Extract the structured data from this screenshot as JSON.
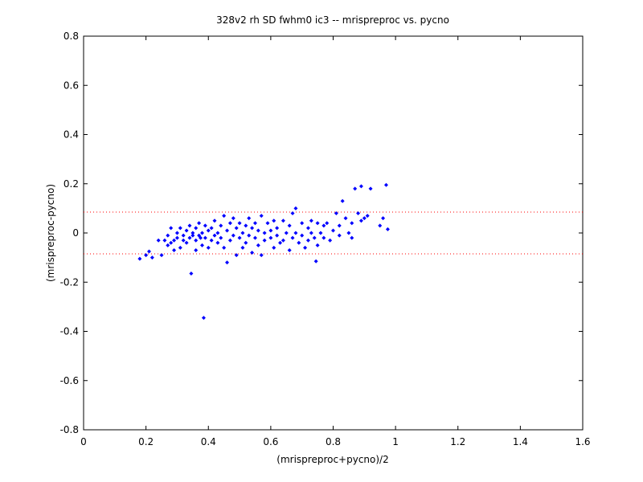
{
  "chart_data": {
    "type": "scatter",
    "title": "328v2 rh SD fwhm0 ic3 -- mrispreproc vs. pycno",
    "xlabel": "(mrispreproc+pycno)/2",
    "ylabel": "(mrispreproc-pycno)",
    "xlim": [
      0,
      1.6
    ],
    "ylim": [
      -0.8,
      0.8
    ],
    "xticks": [
      "0",
      "0.2",
      "0.4",
      "0.6",
      "0.8",
      "1",
      "1.2",
      "1.4",
      "1.6"
    ],
    "yticks": [
      "0.8",
      "0.6",
      "0.4",
      "0.2",
      "0",
      "-0.2",
      "-0.4",
      "-0.6",
      "-0.8"
    ],
    "grid": false,
    "reference_lines": [
      {
        "y": 0.085,
        "style": "dotted",
        "color": "#ff0000"
      },
      {
        "y": -0.085,
        "style": "dotted",
        "color": "#ff0000"
      }
    ],
    "series_color": "#0000ff",
    "points": [
      [
        0.18,
        -0.105
      ],
      [
        0.2,
        -0.09
      ],
      [
        0.21,
        -0.075
      ],
      [
        0.22,
        -0.1
      ],
      [
        0.24,
        -0.03
      ],
      [
        0.25,
        -0.09
      ],
      [
        0.26,
        -0.03
      ],
      [
        0.27,
        -0.01
      ],
      [
        0.27,
        -0.05
      ],
      [
        0.28,
        0.02
      ],
      [
        0.28,
        -0.04
      ],
      [
        0.29,
        -0.03
      ],
      [
        0.29,
        -0.07
      ],
      [
        0.3,
        0.0
      ],
      [
        0.3,
        -0.02
      ],
      [
        0.31,
        -0.06
      ],
      [
        0.31,
        0.02
      ],
      [
        0.32,
        -0.01
      ],
      [
        0.32,
        -0.03
      ],
      [
        0.33,
        0.01
      ],
      [
        0.33,
        -0.04
      ],
      [
        0.34,
        -0.02
      ],
      [
        0.34,
        0.03
      ],
      [
        0.345,
        -0.165
      ],
      [
        0.35,
        -0.01
      ],
      [
        0.35,
        0.0
      ],
      [
        0.36,
        -0.03
      ],
      [
        0.36,
        0.02
      ],
      [
        0.36,
        -0.07
      ],
      [
        0.37,
        -0.01
      ],
      [
        0.37,
        0.04
      ],
      [
        0.375,
        -0.02
      ],
      [
        0.38,
        0.0
      ],
      [
        0.38,
        -0.05
      ],
      [
        0.385,
        -0.345
      ],
      [
        0.39,
        0.03
      ],
      [
        0.39,
        -0.02
      ],
      [
        0.4,
        0.01
      ],
      [
        0.4,
        -0.06
      ],
      [
        0.41,
        0.02
      ],
      [
        0.41,
        -0.03
      ],
      [
        0.42,
        0.05
      ],
      [
        0.42,
        -0.01
      ],
      [
        0.43,
        0.0
      ],
      [
        0.43,
        -0.04
      ],
      [
        0.44,
        0.03
      ],
      [
        0.44,
        -0.02
      ],
      [
        0.45,
        0.07
      ],
      [
        0.45,
        -0.06
      ],
      [
        0.46,
        0.01
      ],
      [
        0.46,
        -0.12
      ],
      [
        0.47,
        0.04
      ],
      [
        0.47,
        -0.03
      ],
      [
        0.48,
        -0.01
      ],
      [
        0.48,
        0.06
      ],
      [
        0.49,
        -0.09
      ],
      [
        0.49,
        0.02
      ],
      [
        0.5,
        -0.02
      ],
      [
        0.5,
        0.04
      ],
      [
        0.51,
        0.0
      ],
      [
        0.51,
        -0.06
      ],
      [
        0.52,
        0.03
      ],
      [
        0.52,
        -0.04
      ],
      [
        0.53,
        0.06
      ],
      [
        0.53,
        -0.01
      ],
      [
        0.54,
        0.02
      ],
      [
        0.54,
        -0.08
      ],
      [
        0.55,
        -0.02
      ],
      [
        0.55,
        0.04
      ],
      [
        0.56,
        0.01
      ],
      [
        0.56,
        -0.05
      ],
      [
        0.57,
        -0.09
      ],
      [
        0.57,
        0.07
      ],
      [
        0.58,
        0.0
      ],
      [
        0.58,
        -0.03
      ],
      [
        0.59,
        0.04
      ],
      [
        0.6,
        -0.02
      ],
      [
        0.6,
        0.01
      ],
      [
        0.61,
        0.05
      ],
      [
        0.61,
        -0.06
      ],
      [
        0.62,
        0.02
      ],
      [
        0.62,
        -0.01
      ],
      [
        0.63,
        -0.04
      ],
      [
        0.64,
        0.05
      ],
      [
        0.64,
        -0.03
      ],
      [
        0.65,
        0.0
      ],
      [
        0.66,
        0.03
      ],
      [
        0.66,
        -0.07
      ],
      [
        0.67,
        0.08
      ],
      [
        0.67,
        -0.02
      ],
      [
        0.68,
        0.1
      ],
      [
        0.68,
        0.0
      ],
      [
        0.69,
        -0.04
      ],
      [
        0.7,
        0.04
      ],
      [
        0.7,
        -0.01
      ],
      [
        0.71,
        -0.06
      ],
      [
        0.72,
        0.02
      ],
      [
        0.72,
        -0.03
      ],
      [
        0.73,
        0.0
      ],
      [
        0.73,
        0.05
      ],
      [
        0.74,
        -0.02
      ],
      [
        0.745,
        -0.115
      ],
      [
        0.75,
        0.04
      ],
      [
        0.75,
        -0.05
      ],
      [
        0.76,
        0.0
      ],
      [
        0.77,
        -0.02
      ],
      [
        0.77,
        0.03
      ],
      [
        0.78,
        0.04
      ],
      [
        0.79,
        -0.03
      ],
      [
        0.8,
        0.01
      ],
      [
        0.81,
        0.08
      ],
      [
        0.82,
        0.03
      ],
      [
        0.82,
        -0.01
      ],
      [
        0.83,
        0.13
      ],
      [
        0.84,
        0.06
      ],
      [
        0.85,
        0.0
      ],
      [
        0.86,
        0.04
      ],
      [
        0.86,
        -0.02
      ],
      [
        0.87,
        0.18
      ],
      [
        0.88,
        0.08
      ],
      [
        0.89,
        0.05
      ],
      [
        0.89,
        0.19
      ],
      [
        0.9,
        0.06
      ],
      [
        0.91,
        0.07
      ],
      [
        0.92,
        0.18
      ],
      [
        0.95,
        0.03
      ],
      [
        0.96,
        0.06
      ],
      [
        0.97,
        0.195
      ],
      [
        0.975,
        0.015
      ]
    ]
  }
}
